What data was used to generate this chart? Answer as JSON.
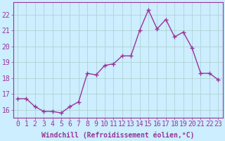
{
  "x": [
    0,
    1,
    2,
    3,
    4,
    5,
    6,
    7,
    8,
    9,
    10,
    11,
    12,
    13,
    14,
    15,
    16,
    17,
    18,
    19,
    20,
    21,
    22,
    23
  ],
  "y": [
    16.7,
    16.7,
    16.2,
    15.9,
    15.9,
    15.8,
    16.2,
    16.5,
    18.3,
    18.2,
    18.8,
    18.9,
    19.4,
    19.4,
    21.0,
    22.3,
    21.1,
    21.7,
    20.6,
    20.9,
    19.9,
    18.3,
    18.3,
    17.9
  ],
  "line_color": "#993399",
  "marker": "+",
  "marker_size": 4,
  "bg_color": "#cceeff",
  "grid_color": "#aacccc",
  "xlabel": "Windchill (Refroidissement éolien,°C)",
  "xlabel_color": "#993399",
  "tick_color": "#993399",
  "ylabel_ticks": [
    16,
    17,
    18,
    19,
    20,
    21,
    22
  ],
  "ylim": [
    15.5,
    22.8
  ],
  "xlim": [
    -0.5,
    23.5
  ],
  "font_size": 7,
  "line_width": 1.0,
  "tick_label_size": 7
}
